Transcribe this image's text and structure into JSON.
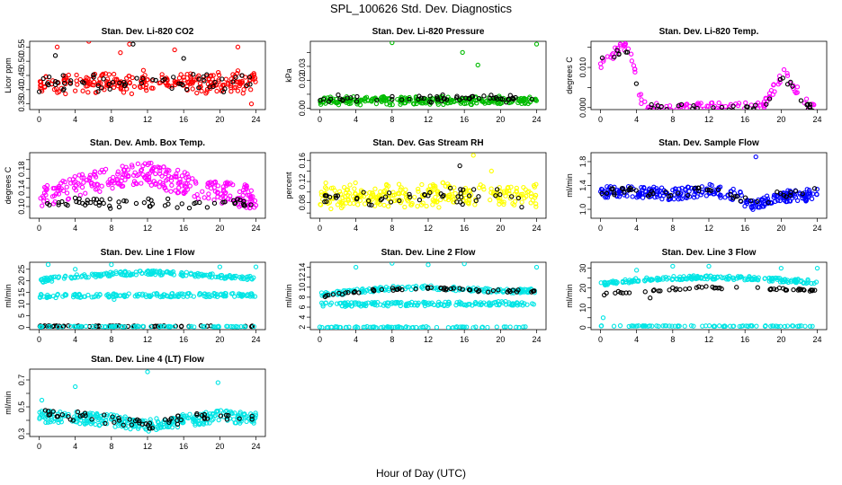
{
  "figure": {
    "title": "SPL_100626  Std. Dev. Diagnostics",
    "xlabel": "Hour of Day (UTC)"
  },
  "chart_data": [
    {
      "type": "scatter",
      "title": "Stan. Dev. Li-820 CO2",
      "ylabel": "Licor ppm",
      "xlim": [
        0,
        24
      ],
      "ylim": [
        0.33,
        0.57
      ],
      "xticks": [
        0,
        4,
        8,
        12,
        16,
        20,
        24
      ],
      "yticks": [
        0.35,
        0.4,
        0.45,
        0.5,
        0.55
      ],
      "ytick_labels": [
        "0.35",
        "0.40",
        "0.45",
        "0.50",
        "0.55"
      ],
      "series": [
        {
          "color": "#ff0000",
          "bands": [
            {
              "x0": 0,
              "x1": 24,
              "y0": 0.38,
              "y1": 0.47,
              "n": 260
            }
          ],
          "x": [
            2,
            5.5,
            9,
            10,
            15,
            22,
            23.5
          ],
          "y": [
            0.55,
            0.57,
            0.53,
            0.56,
            0.54,
            0.55,
            0.35
          ]
        },
        {
          "color": "#000000",
          "bands": [
            {
              "x0": 0,
              "x1": 24,
              "y0": 0.39,
              "y1": 0.46,
              "n": 60
            }
          ],
          "x": [
            1.8,
            10.4,
            16
          ],
          "y": [
            0.52,
            0.56,
            0.51
          ]
        }
      ]
    },
    {
      "type": "scatter",
      "title": "Stan. Dev. Li-820 Pressure",
      "ylabel": "kPa",
      "xlim": [
        0,
        24
      ],
      "ylim": [
        -0.001,
        0.048
      ],
      "xticks": [
        0,
        4,
        8,
        12,
        16,
        20,
        24
      ],
      "yticks": [
        0.0,
        0.01,
        0.02,
        0.03,
        0.04
      ],
      "ytick_labels": [
        "0.00",
        "",
        "0.02",
        "0.03",
        ""
      ],
      "series": [
        {
          "color": "#00bb00",
          "bands": [
            {
              "x0": 0,
              "x1": 24,
              "y0": 0.002,
              "y1": 0.009,
              "n": 280
            }
          ],
          "x": [
            8,
            15.8,
            17.5,
            24
          ],
          "y": [
            0.047,
            0.04,
            0.031,
            0.046
          ]
        },
        {
          "color": "#000000",
          "bands": [
            {
              "x0": 0,
              "x1": 24,
              "y0": 0.004,
              "y1": 0.01,
              "n": 60
            }
          ],
          "x": [],
          "y": []
        }
      ]
    },
    {
      "type": "scatter",
      "title": "Stan. Dev. Li-820 Temp.",
      "ylabel": "degrees C",
      "xlim": [
        0,
        24
      ],
      "ylim": [
        -0.0005,
        0.0165
      ],
      "xticks": [
        0,
        4,
        8,
        12,
        16,
        20,
        24
      ],
      "yticks": [
        0.0,
        0.005,
        0.01,
        0.015
      ],
      "ytick_labels": [
        "0.000",
        "",
        "0.010",
        ""
      ],
      "series": [
        {
          "color": "#ff00ff",
          "curve": [
            [
              0.2,
              0.011
            ],
            [
              1.2,
              0.013
            ],
            [
              2.5,
              0.0155
            ],
            [
              3.3,
              0.014
            ],
            [
              4,
              0.007
            ],
            [
              4.5,
              0.002
            ],
            [
              5,
              0.0
            ],
            [
              18,
              0.0
            ],
            [
              18.5,
              0.002
            ],
            [
              19.5,
              0.006
            ],
            [
              20.5,
              0.009
            ],
            [
              21.5,
              0.005
            ],
            [
              22.5,
              0.002
            ],
            [
              23.5,
              0.0
            ]
          ],
          "jitter": 0.0012,
          "n": 140,
          "x": [],
          "y": []
        },
        {
          "color": "#000000",
          "curve": [
            [
              0.5,
              0.012
            ],
            [
              2,
              0.014
            ],
            [
              3,
              0.013
            ],
            [
              4,
              0.006
            ],
            [
              4.6,
              0.001
            ],
            [
              5,
              0.0
            ],
            [
              18,
              0.0
            ],
            [
              19,
              0.004
            ],
            [
              20,
              0.008
            ],
            [
              21,
              0.006
            ],
            [
              22,
              0.002
            ],
            [
              23,
              0.0
            ],
            [
              24,
              0.0
            ]
          ],
          "jitter": 0.0008,
          "n": 45,
          "x": [],
          "y": []
        }
      ]
    },
    {
      "type": "scatter",
      "title": "Stan. Dev. Amb. Box Temp.",
      "ylabel": "degrees C",
      "xlim": [
        0,
        24
      ],
      "ylim": [
        0.075,
        0.215
      ],
      "xticks": [
        0,
        4,
        8,
        12,
        16,
        20,
        24
      ],
      "yticks": [
        0.1,
        0.12,
        0.14,
        0.16,
        0.18,
        0.2
      ],
      "ytick_labels": [
        "0.10",
        "",
        "0.14",
        "",
        "0.18",
        ""
      ],
      "series": [
        {
          "color": "#ff00ff",
          "curve": [
            [
              0,
              0.12
            ],
            [
              4,
              0.14
            ],
            [
              8,
              0.16
            ],
            [
              12,
              0.17
            ],
            [
              16,
              0.15
            ],
            [
              20,
              0.13
            ],
            [
              24,
              0.12
            ]
          ],
          "jitter": 0.025,
          "n": 300,
          "x": [],
          "y": []
        },
        {
          "color": "#000000",
          "bands": [
            {
              "x0": 0,
              "x1": 24,
              "y0": 0.095,
              "y1": 0.12,
              "n": 60
            }
          ],
          "x": [],
          "y": []
        }
      ]
    },
    {
      "type": "scatter",
      "title": "Stan. Dev. Gas Stream RH",
      "ylabel": "percent",
      "xlim": [
        0,
        24
      ],
      "ylim": [
        0.05,
        0.175
      ],
      "xticks": [
        0,
        4,
        8,
        12,
        16,
        20,
        24
      ],
      "yticks": [
        0.06,
        0.08,
        0.1,
        0.12,
        0.14,
        0.16
      ],
      "ytick_labels": [
        "",
        "0.08",
        "",
        "0.12",
        "",
        "0.16"
      ],
      "series": [
        {
          "color": "#ffff00",
          "bands": [
            {
              "x0": 0,
              "x1": 24,
              "y0": 0.065,
              "y1": 0.12,
              "n": 280
            }
          ],
          "x": [
            17,
            19
          ],
          "y": [
            0.17,
            0.14
          ]
        },
        {
          "color": "#000000",
          "bands": [
            {
              "x0": 0,
              "x1": 24,
              "y0": 0.07,
              "y1": 0.11,
              "n": 50
            }
          ],
          "x": [
            15.5
          ],
          "y": [
            0.15
          ]
        }
      ]
    },
    {
      "type": "scatter",
      "title": "Stan. Dev. Sample Flow",
      "ylabel": "ml/min",
      "xlim": [
        0,
        24
      ],
      "ylim": [
        0.85,
        1.95
      ],
      "xticks": [
        0,
        4,
        8,
        12,
        16,
        20,
        24
      ],
      "yticks": [
        1.0,
        1.2,
        1.4,
        1.6,
        1.8
      ],
      "ytick_labels": [
        "1.0",
        "",
        "1.4",
        "",
        "1.8"
      ],
      "series": [
        {
          "color": "#0000ff",
          "curve": [
            [
              0,
              1.3
            ],
            [
              4,
              1.3
            ],
            [
              8,
              1.25
            ],
            [
              12,
              1.32
            ],
            [
              15,
              1.25
            ],
            [
              17,
              1.05
            ],
            [
              19,
              1.2
            ],
            [
              24,
              1.25
            ]
          ],
          "jitter": 0.1,
          "n": 280,
          "x": [
            17.2
          ],
          "y": [
            1.88
          ]
        },
        {
          "color": "#000000",
          "curve": [
            [
              0,
              1.3
            ],
            [
              6,
              1.28
            ],
            [
              12,
              1.3
            ],
            [
              17,
              1.1
            ],
            [
              20,
              1.25
            ],
            [
              24,
              1.3
            ]
          ],
          "jitter": 0.07,
          "n": 50,
          "x": [],
          "y": []
        }
      ]
    },
    {
      "type": "scatter",
      "title": "Stan. Dev. Line 1 Flow",
      "ylabel": "ml/min",
      "xlim": [
        0,
        24
      ],
      "ylim": [
        -1,
        28
      ],
      "xticks": [
        0,
        4,
        8,
        12,
        16,
        20,
        24
      ],
      "yticks": [
        0,
        5,
        10,
        15,
        20,
        25
      ],
      "ytick_labels": [
        "0",
        "5",
        "10",
        "15",
        "20",
        "25"
      ],
      "series": [
        {
          "color": "#00e5e5",
          "curve": [
            [
              0,
              20
            ],
            [
              4,
              22
            ],
            [
              8,
              23
            ],
            [
              12,
              23.5
            ],
            [
              16,
              23
            ],
            [
              20,
              22
            ],
            [
              24,
              21
            ]
          ],
          "jitter": 0.9,
          "n": 180,
          "x": [],
          "y": []
        },
        {
          "color": "#00e5e5",
          "curve": [
            [
              0,
              13.5
            ],
            [
              24,
              14
            ]
          ],
          "jitter": 0.8,
          "n": 160,
          "x": [
            4,
            8,
            8.3,
            1,
            20,
            24
          ],
          "y": [
            25,
            27,
            12,
            27,
            26,
            26
          ]
        },
        {
          "color": "#000000",
          "curve": [
            [
              0,
              0.5
            ],
            [
              24,
              0.5
            ]
          ],
          "jitter": 0.2,
          "n": 60,
          "x": [],
          "y": []
        },
        {
          "color": "#00e5e5",
          "curve": [
            [
              0,
              0.3
            ],
            [
              24,
              0.3
            ]
          ],
          "jitter": 0.15,
          "n": 80,
          "x": [],
          "y": []
        }
      ]
    },
    {
      "type": "scatter",
      "title": "Stan. Dev. Line 2 Flow",
      "ylabel": "ml/min",
      "xlim": [
        0,
        24
      ],
      "ylim": [
        1.5,
        15
      ],
      "xticks": [
        0,
        4,
        8,
        12,
        16,
        20,
        24
      ],
      "yticks": [
        2,
        4,
        6,
        8,
        10,
        12,
        14
      ],
      "ytick_labels": [
        "2",
        "4",
        "6",
        "8",
        "10",
        "12",
        "14"
      ],
      "series": [
        {
          "color": "#00e5e5",
          "curve": [
            [
              0,
              8.5
            ],
            [
              4,
              9.2
            ],
            [
              8,
              9.8
            ],
            [
              12,
              10
            ],
            [
              16,
              9.6
            ],
            [
              20,
              9.2
            ],
            [
              24,
              9.3
            ]
          ],
          "jitter": 0.4,
          "n": 160,
          "x": [
            4,
            8,
            12,
            16,
            24
          ],
          "y": [
            14,
            14.8,
            14.5,
            14.7,
            14
          ]
        },
        {
          "color": "#00e5e5",
          "curve": [
            [
              0,
              6.5
            ],
            [
              24,
              6.8
            ]
          ],
          "jitter": 0.4,
          "n": 160,
          "x": [],
          "y": []
        },
        {
          "color": "#000000",
          "curve": [
            [
              0,
              8.2
            ],
            [
              6,
              9.4
            ],
            [
              12,
              9.8
            ],
            [
              18,
              9.3
            ],
            [
              24,
              9.1
            ]
          ],
          "jitter": 0.3,
          "n": 55,
          "x": [],
          "y": []
        },
        {
          "color": "#00e5e5",
          "curve": [
            [
              0,
              2
            ],
            [
              24,
              2
            ]
          ],
          "jitter": 0.12,
          "n": 80,
          "x": [],
          "y": []
        }
      ]
    },
    {
      "type": "scatter",
      "title": "Stan. Dev. Line 3 Flow",
      "ylabel": "ml/min",
      "xlim": [
        0,
        24
      ],
      "ylim": [
        -1,
        33
      ],
      "xticks": [
        0,
        4,
        8,
        12,
        16,
        20,
        24
      ],
      "yticks": [
        0,
        5,
        10,
        15,
        20,
        25,
        30
      ],
      "ytick_labels": [
        "0",
        "",
        "10",
        "",
        "20",
        "",
        "30"
      ],
      "series": [
        {
          "color": "#00e5e5",
          "curve": [
            [
              0,
              22
            ],
            [
              4,
              24
            ],
            [
              8,
              25
            ],
            [
              12,
              25.5
            ],
            [
              16,
              25
            ],
            [
              20,
              24
            ],
            [
              24,
              23
            ]
          ],
          "jitter": 1.0,
          "n": 200,
          "x": [
            0.3,
            4,
            8,
            12,
            20,
            24
          ],
          "y": [
            5,
            29,
            31,
            31,
            30,
            30
          ]
        },
        {
          "color": "#000000",
          "curve": [
            [
              0,
              17
            ],
            [
              6,
              19
            ],
            [
              12,
              20.5
            ],
            [
              18,
              19.5
            ],
            [
              24,
              19
            ]
          ],
          "jitter": 0.7,
          "n": 55,
          "x": [
            5.5
          ],
          "y": [
            15
          ]
        },
        {
          "color": "#00e5e5",
          "curve": [
            [
              0,
              0.8
            ],
            [
              24,
              0.8
            ]
          ],
          "jitter": 0.2,
          "n": 80,
          "x": [],
          "y": []
        }
      ]
    },
    {
      "type": "scatter",
      "title": "Stan. Dev. Line 4 (LT) Flow",
      "ylabel": "ml/min",
      "xlim": [
        0,
        24
      ],
      "ylim": [
        0.28,
        0.78
      ],
      "xticks": [
        0,
        4,
        8,
        12,
        16,
        20,
        24
      ],
      "yticks": [
        0.3,
        0.4,
        0.5,
        0.6,
        0.7
      ],
      "ytick_labels": [
        "0.3",
        "",
        "0.5",
        "",
        "0.7"
      ],
      "series": [
        {
          "color": "#00e5e5",
          "curve": [
            [
              0,
              0.43
            ],
            [
              4,
              0.42
            ],
            [
              8,
              0.4
            ],
            [
              12,
              0.36
            ],
            [
              16,
              0.4
            ],
            [
              20,
              0.43
            ],
            [
              24,
              0.41
            ]
          ],
          "jitter": 0.045,
          "n": 300,
          "x": [
            0.3,
            4,
            12,
            19.8
          ],
          "y": [
            0.55,
            0.65,
            0.76,
            0.68
          ]
        },
        {
          "color": "#000000",
          "curve": [
            [
              0,
              0.45
            ],
            [
              4,
              0.43
            ],
            [
              8,
              0.4
            ],
            [
              12,
              0.36
            ],
            [
              16,
              0.41
            ],
            [
              20,
              0.43
            ],
            [
              24,
              0.4
            ]
          ],
          "jitter": 0.035,
          "n": 60,
          "x": [],
          "y": []
        }
      ]
    }
  ]
}
